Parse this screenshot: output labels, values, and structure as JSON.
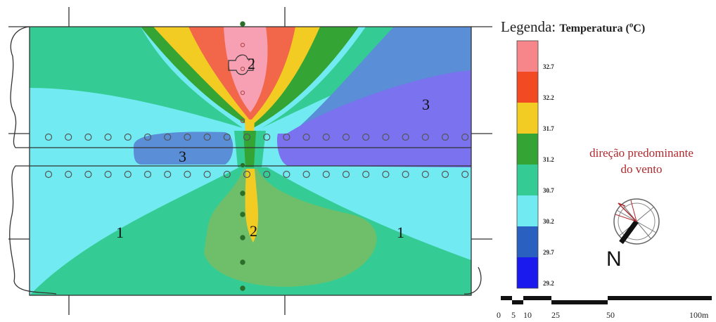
{
  "legend": {
    "prefix": "Legenda:",
    "title": "Temperatura (",
    "unit_sup": "o",
    "unit_suffix": "C)",
    "ticks": [
      "32.7",
      "32.2",
      "31.7",
      "31.2",
      "30.7",
      "30.2",
      "29.7",
      "29.2"
    ],
    "colors": [
      "#f7868a",
      "#f24a22",
      "#f2cc22",
      "#34a534",
      "#34cc94",
      "#72eaf2",
      "#2a60c0",
      "#1a1aee"
    ]
  },
  "wind": {
    "line1": "direção predominante",
    "line2": "do vento"
  },
  "compass": {
    "north_label": "N"
  },
  "scale_bar": {
    "labels": [
      "0",
      "5",
      "10",
      "25",
      "50",
      "100m"
    ]
  },
  "zones": {
    "top_center": "2",
    "top_right": "3",
    "mid_left": "3",
    "bottom_left": "1",
    "bottom_center": "2",
    "bottom_right": "1"
  }
}
